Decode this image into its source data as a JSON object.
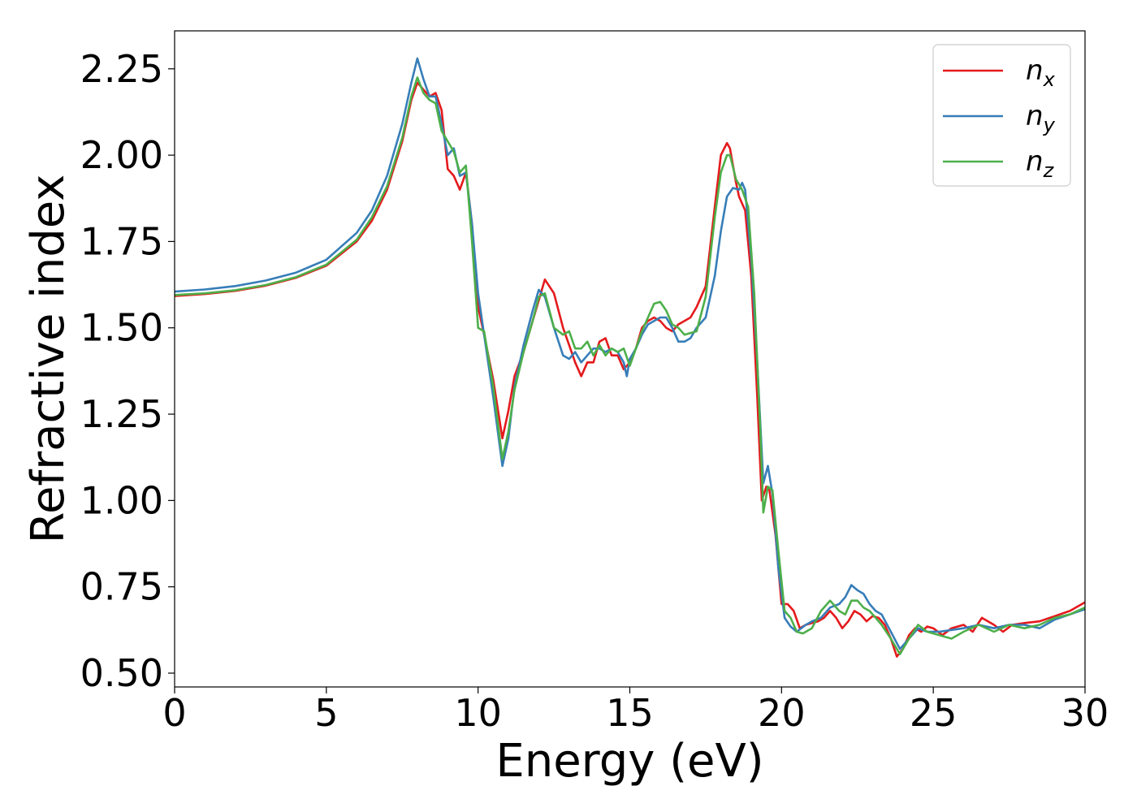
{
  "chart_data": {
    "type": "line",
    "title": "",
    "xlabel": "Energy (eV)",
    "ylabel": "Refractive index",
    "xlim": [
      0,
      30
    ],
    "ylim": [
      0.46,
      2.36
    ],
    "xticks": [
      0,
      5,
      10,
      15,
      20,
      25,
      30
    ],
    "yticks": [
      0.5,
      0.75,
      1.0,
      1.25,
      1.5,
      1.75,
      2.0,
      2.25
    ],
    "xtick_labels": [
      "0",
      "5",
      "10",
      "15",
      "20",
      "25",
      "30"
    ],
    "ytick_labels": [
      "0.50",
      "0.75",
      "1.00",
      "1.25",
      "1.50",
      "1.75",
      "2.00",
      "2.25"
    ],
    "grid": false,
    "legend_position": "top-right",
    "series": [
      {
        "name": "n_x",
        "label_main": "n",
        "label_sub": "x",
        "color": "#e41a1c",
        "x": [
          0,
          1,
          2,
          3,
          4,
          5,
          6,
          6.5,
          7,
          7.5,
          7.8,
          8.0,
          8.2,
          8.4,
          8.6,
          8.8,
          9.0,
          9.2,
          9.4,
          9.6,
          9.8,
          10.0,
          10.2,
          10.5,
          10.8,
          11.0,
          11.2,
          11.5,
          11.8,
          12.0,
          12.2,
          12.5,
          12.8,
          13.0,
          13.2,
          13.4,
          13.6,
          13.8,
          14.0,
          14.2,
          14.4,
          14.6,
          14.8,
          15.0,
          15.2,
          15.4,
          15.6,
          15.8,
          16.0,
          16.2,
          16.4,
          16.6,
          16.8,
          17.0,
          17.2,
          17.5,
          17.8,
          18.0,
          18.2,
          18.3,
          18.5,
          18.6,
          18.8,
          19.0,
          19.2,
          19.35,
          19.5,
          19.6,
          19.8,
          20.0,
          20.2,
          20.4,
          20.6,
          20.8,
          21.0,
          21.2,
          21.4,
          21.6,
          21.8,
          22.0,
          22.2,
          22.4,
          22.6,
          22.8,
          23.0,
          23.2,
          23.4,
          23.6,
          23.8,
          24.0,
          24.2,
          24.4,
          24.6,
          24.8,
          25.0,
          25.3,
          25.6,
          26.0,
          26.3,
          26.6,
          27.0,
          27.3,
          27.6,
          28.0,
          28.5,
          29.0,
          29.5,
          30.0
        ],
        "y": [
          1.592,
          1.598,
          1.607,
          1.622,
          1.645,
          1.68,
          1.75,
          1.81,
          1.9,
          2.04,
          2.16,
          2.21,
          2.19,
          2.17,
          2.18,
          2.13,
          1.96,
          1.94,
          1.9,
          1.95,
          1.8,
          1.56,
          1.48,
          1.35,
          1.18,
          1.26,
          1.36,
          1.43,
          1.52,
          1.58,
          1.64,
          1.6,
          1.5,
          1.45,
          1.4,
          1.36,
          1.4,
          1.4,
          1.46,
          1.47,
          1.42,
          1.42,
          1.38,
          1.4,
          1.44,
          1.5,
          1.52,
          1.53,
          1.52,
          1.5,
          1.49,
          1.51,
          1.52,
          1.53,
          1.56,
          1.62,
          1.85,
          2.0,
          2.035,
          2.02,
          1.92,
          1.88,
          1.84,
          1.65,
          1.3,
          1.0,
          1.04,
          1.03,
          0.9,
          0.7,
          0.7,
          0.68,
          0.63,
          0.64,
          0.645,
          0.65,
          0.66,
          0.68,
          0.66,
          0.63,
          0.65,
          0.68,
          0.67,
          0.65,
          0.665,
          0.66,
          0.64,
          0.6,
          0.548,
          0.57,
          0.61,
          0.63,
          0.62,
          0.635,
          0.63,
          0.61,
          0.63,
          0.64,
          0.62,
          0.66,
          0.64,
          0.62,
          0.64,
          0.645,
          0.65,
          0.665,
          0.68,
          0.705
        ]
      },
      {
        "name": "n_y",
        "label_main": "n",
        "label_sub": "y",
        "color": "#377eb8",
        "x": [
          0,
          1,
          2,
          3,
          4,
          5,
          6,
          6.5,
          7,
          7.5,
          7.8,
          8.0,
          8.2,
          8.4,
          8.6,
          8.8,
          9.0,
          9.2,
          9.4,
          9.6,
          9.8,
          10.0,
          10.2,
          10.5,
          10.8,
          11.0,
          11.2,
          11.5,
          11.8,
          12.0,
          12.2,
          12.5,
          12.8,
          13.0,
          13.2,
          13.4,
          13.6,
          13.8,
          14.0,
          14.2,
          14.4,
          14.6,
          14.8,
          14.9,
          15.0,
          15.2,
          15.4,
          15.6,
          15.8,
          16.0,
          16.2,
          16.4,
          16.6,
          16.8,
          17.0,
          17.2,
          17.5,
          17.8,
          18.0,
          18.2,
          18.4,
          18.6,
          18.7,
          18.8,
          19.0,
          19.2,
          19.4,
          19.55,
          19.7,
          19.9,
          20.1,
          20.3,
          20.5,
          20.8,
          21.0,
          21.3,
          21.6,
          21.9,
          22.1,
          22.3,
          22.5,
          22.7,
          22.9,
          23.1,
          23.3,
          23.6,
          23.9,
          24.2,
          24.5,
          24.8,
          25.2,
          25.6,
          26.0,
          26.5,
          27.0,
          27.5,
          28.0,
          28.5,
          29.0,
          29.5,
          30.0
        ],
        "y": [
          1.605,
          1.611,
          1.621,
          1.637,
          1.66,
          1.697,
          1.775,
          1.84,
          1.94,
          2.09,
          2.21,
          2.28,
          2.22,
          2.17,
          2.17,
          2.09,
          2.0,
          2.02,
          1.94,
          1.95,
          1.8,
          1.6,
          1.48,
          1.3,
          1.1,
          1.18,
          1.33,
          1.45,
          1.55,
          1.61,
          1.59,
          1.5,
          1.42,
          1.41,
          1.43,
          1.4,
          1.42,
          1.44,
          1.44,
          1.43,
          1.44,
          1.43,
          1.4,
          1.36,
          1.41,
          1.44,
          1.48,
          1.51,
          1.52,
          1.53,
          1.53,
          1.5,
          1.46,
          1.46,
          1.47,
          1.5,
          1.53,
          1.65,
          1.78,
          1.88,
          1.905,
          1.9,
          1.92,
          1.9,
          1.7,
          1.4,
          1.05,
          1.1,
          1.02,
          0.8,
          0.66,
          0.635,
          0.62,
          0.64,
          0.65,
          0.66,
          0.69,
          0.7,
          0.72,
          0.755,
          0.74,
          0.73,
          0.7,
          0.68,
          0.67,
          0.62,
          0.57,
          0.6,
          0.63,
          0.62,
          0.62,
          0.625,
          0.63,
          0.64,
          0.63,
          0.64,
          0.64,
          0.63,
          0.655,
          0.67,
          0.685
        ]
      },
      {
        "name": "n_z",
        "label_main": "n",
        "label_sub": "z",
        "color": "#4daf4a",
        "x": [
          0,
          1,
          2,
          3,
          4,
          5,
          6,
          6.5,
          7,
          7.5,
          7.8,
          8.0,
          8.2,
          8.4,
          8.6,
          8.8,
          9.0,
          9.2,
          9.4,
          9.6,
          9.8,
          10.0,
          10.2,
          10.5,
          10.8,
          11.0,
          11.2,
          11.5,
          11.8,
          12.0,
          12.2,
          12.5,
          12.8,
          13.0,
          13.2,
          13.4,
          13.6,
          13.8,
          14.0,
          14.2,
          14.4,
          14.6,
          14.8,
          15.0,
          15.2,
          15.4,
          15.6,
          15.8,
          16.0,
          16.2,
          16.4,
          16.6,
          16.8,
          17.0,
          17.2,
          17.5,
          17.8,
          18.0,
          18.2,
          18.3,
          18.5,
          18.7,
          18.9,
          19.1,
          19.3,
          19.4,
          19.55,
          19.7,
          19.9,
          20.1,
          20.3,
          20.5,
          20.7,
          21.0,
          21.3,
          21.6,
          21.9,
          22.1,
          22.3,
          22.5,
          22.7,
          22.9,
          23.1,
          23.3,
          23.6,
          23.9,
          24.2,
          24.5,
          24.8,
          25.2,
          25.6,
          26.0,
          26.5,
          27.0,
          27.5,
          28.0,
          28.5,
          29.0,
          29.5,
          30.0
        ],
        "y": [
          1.595,
          1.6,
          1.609,
          1.624,
          1.647,
          1.683,
          1.755,
          1.82,
          1.91,
          2.05,
          2.17,
          2.225,
          2.18,
          2.16,
          2.15,
          2.07,
          2.04,
          2.01,
          1.95,
          1.97,
          1.75,
          1.5,
          1.49,
          1.33,
          1.12,
          1.2,
          1.32,
          1.43,
          1.52,
          1.59,
          1.6,
          1.5,
          1.48,
          1.49,
          1.44,
          1.44,
          1.46,
          1.42,
          1.45,
          1.42,
          1.44,
          1.43,
          1.44,
          1.39,
          1.44,
          1.49,
          1.53,
          1.57,
          1.575,
          1.55,
          1.51,
          1.5,
          1.48,
          1.485,
          1.49,
          1.59,
          1.82,
          1.95,
          2.0,
          2.0,
          1.93,
          1.9,
          1.85,
          1.6,
          1.2,
          0.965,
          1.04,
          1.03,
          0.85,
          0.68,
          0.66,
          0.62,
          0.615,
          0.63,
          0.68,
          0.71,
          0.68,
          0.67,
          0.71,
          0.71,
          0.69,
          0.68,
          0.66,
          0.64,
          0.6,
          0.555,
          0.6,
          0.64,
          0.62,
          0.61,
          0.6,
          0.62,
          0.64,
          0.62,
          0.64,
          0.63,
          0.64,
          0.66,
          0.67,
          0.69
        ]
      }
    ]
  }
}
